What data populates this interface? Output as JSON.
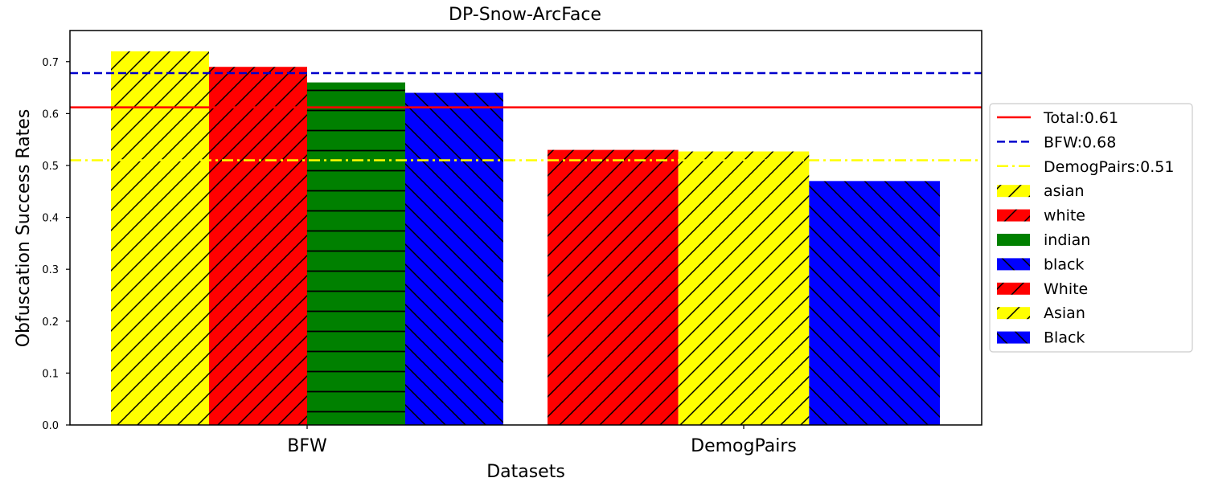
{
  "chart_data": {
    "type": "bar",
    "title": "DP-Snow-ArcFace",
    "xlabel": "Datasets",
    "ylabel": "Obfuscation Success Rates",
    "ylim": [
      0,
      0.76
    ],
    "yticks": [
      "0.0",
      "0.1",
      "0.2",
      "0.3",
      "0.4",
      "0.5",
      "0.6",
      "0.7"
    ],
    "categories": [
      "BFW",
      "DemogPairs"
    ],
    "groups": [
      {
        "category": "BFW",
        "bars": [
          {
            "series": "asian",
            "value": 0.72,
            "color": "#ffff00",
            "hatch": "forward"
          },
          {
            "series": "white",
            "value": 0.69,
            "color": "#ff0000",
            "hatch": "forward"
          },
          {
            "series": "indian",
            "value": 0.66,
            "color": "#008000",
            "hatch": "horizontal"
          },
          {
            "series": "black",
            "value": 0.64,
            "color": "#0000ff",
            "hatch": "back"
          }
        ]
      },
      {
        "category": "DemogPairs",
        "bars": [
          {
            "series": "White",
            "value": 0.53,
            "color": "#ff0000",
            "hatch": "forward"
          },
          {
            "series": "Asian",
            "value": 0.527,
            "color": "#ffff00",
            "hatch": "forward"
          },
          {
            "series": "Black",
            "value": 0.47,
            "color": "#0000ff",
            "hatch": "back"
          }
        ]
      }
    ],
    "reference_lines": [
      {
        "label": "Total:0.61",
        "value": 0.612,
        "color": "#ff0000",
        "style": "solid"
      },
      {
        "label": "BFW:0.68",
        "value": 0.678,
        "color": "#0000cc",
        "style": "dashed"
      },
      {
        "label": "DemogPairs:0.51",
        "value": 0.51,
        "color": "#ffff00",
        "style": "dashdot"
      }
    ],
    "legend": {
      "placement": "right",
      "entries": [
        {
          "label": "Total:0.61",
          "kind": "line",
          "color": "#ff0000",
          "style": "solid"
        },
        {
          "label": "BFW:0.68",
          "kind": "line",
          "color": "#0000cc",
          "style": "dashed"
        },
        {
          "label": "DemogPairs:0.51",
          "kind": "line",
          "color": "#ffff00",
          "style": "dashdot"
        },
        {
          "label": "asian",
          "kind": "patch",
          "color": "#ffff00",
          "hatch": "forward"
        },
        {
          "label": "white",
          "kind": "patch",
          "color": "#ff0000",
          "hatch": "forward"
        },
        {
          "label": "indian",
          "kind": "patch",
          "color": "#008000",
          "hatch": "horizontal"
        },
        {
          "label": "black",
          "kind": "patch",
          "color": "#0000ff",
          "hatch": "back"
        },
        {
          "label": "White",
          "kind": "patch",
          "color": "#ff0000",
          "hatch": "forward"
        },
        {
          "label": "Asian",
          "kind": "patch",
          "color": "#ffff00",
          "hatch": "forward"
        },
        {
          "label": "Black",
          "kind": "patch",
          "color": "#0000ff",
          "hatch": "back"
        }
      ]
    },
    "grid": false
  }
}
